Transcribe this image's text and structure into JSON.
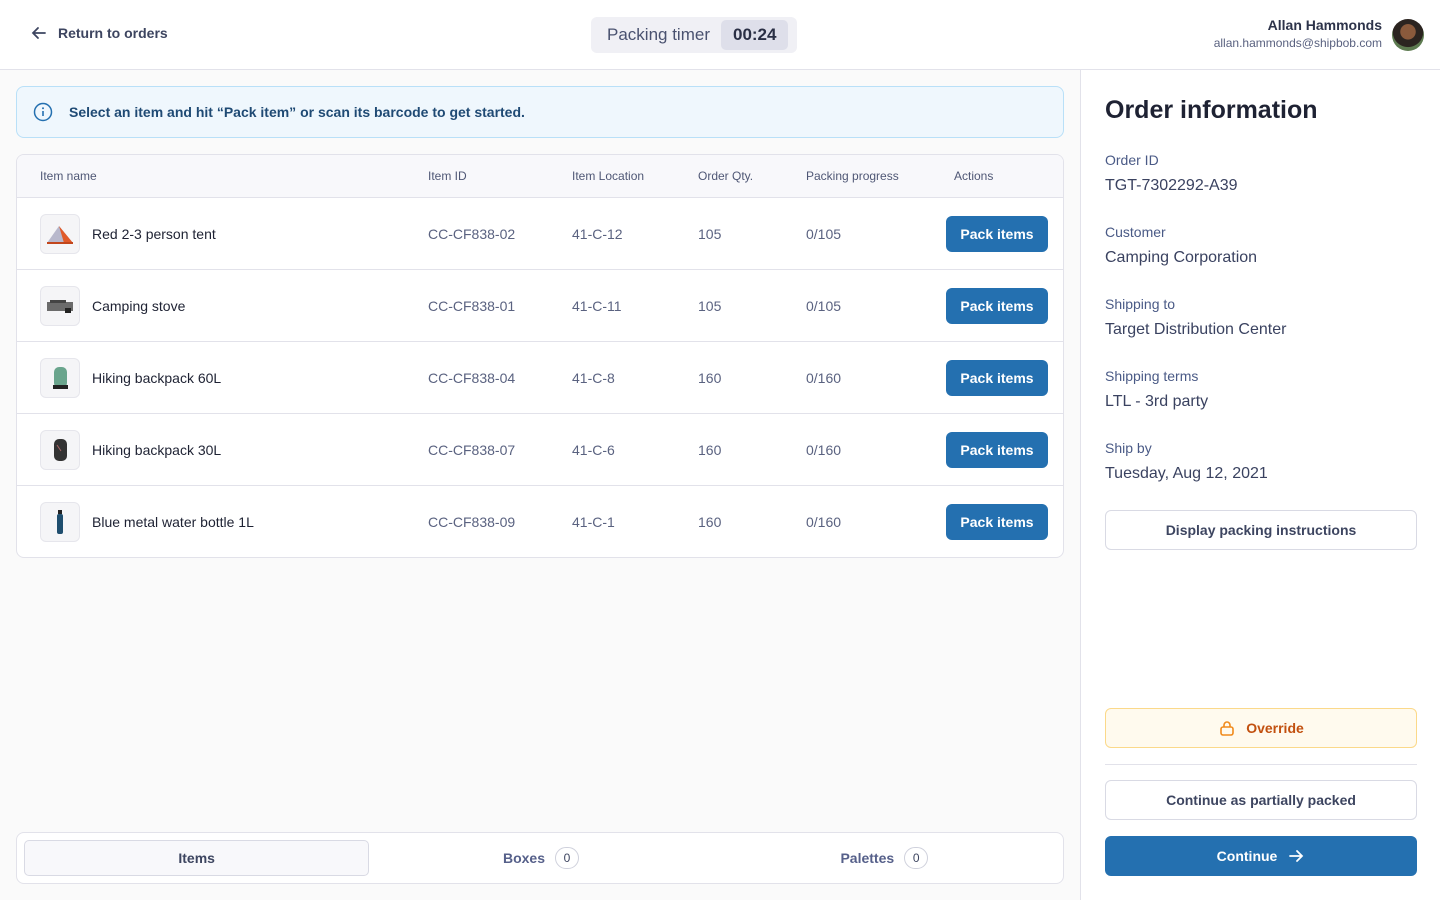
{
  "header": {
    "back_label": "Return to orders",
    "timer_label": "Packing timer",
    "timer_value": "00:24",
    "user_name": "Allan Hammonds",
    "user_email": "allan.hammonds@shipbob.com"
  },
  "banner": {
    "text": "Select an item and hit “Pack item” or scan its barcode to get started.",
    "icon": "info-icon"
  },
  "table": {
    "columns": [
      "Item name",
      "Item ID",
      "Item Location",
      "Order Qty.",
      "Packing progress",
      "Actions"
    ],
    "rows": [
      {
        "name": "Red 2-3 person tent",
        "id": "CC-CF838-02",
        "location": "41-C-12",
        "qty": "105",
        "progress": "0/105",
        "action": "Pack items"
      },
      {
        "name": "Camping stove",
        "id": "CC-CF838-01",
        "location": "41-C-11",
        "qty": "105",
        "progress": "0/105",
        "action": "Pack items"
      },
      {
        "name": "Hiking backpack 60L",
        "id": "CC-CF838-04",
        "location": "41-C-8",
        "qty": "160",
        "progress": "0/160",
        "action": "Pack items"
      },
      {
        "name": "Hiking backpack 30L",
        "id": "CC-CF838-07",
        "location": "41-C-6",
        "qty": "160",
        "progress": "0/160",
        "action": "Pack items"
      },
      {
        "name": "Blue metal water bottle 1L",
        "id": "CC-CF838-09",
        "location": "41-C-1",
        "qty": "160",
        "progress": "0/160",
        "action": "Pack items"
      }
    ]
  },
  "tabs": [
    {
      "label": "Items",
      "active": true
    },
    {
      "label": "Boxes",
      "count": "0"
    },
    {
      "label": "Palettes",
      "count": "0"
    }
  ],
  "order": {
    "title": "Order information",
    "fields": [
      {
        "label": "Order ID",
        "value": "TGT-7302292-A39"
      },
      {
        "label": "Customer",
        "value": "Camping Corporation"
      },
      {
        "label": "Shipping to",
        "value": "Target Distribution Center"
      },
      {
        "label": "Shipping terms",
        "value": "LTL - 3rd party"
      },
      {
        "label": "Ship by",
        "value": "Tuesday, Aug 12, 2021"
      }
    ],
    "instructions_label": "Display packing instructions",
    "override_label": "Override",
    "partial_label": "Continue as partially packed",
    "continue_label": "Continue"
  },
  "colors": {
    "primary": "#2470b0",
    "override_text": "#c2500f",
    "banner_bg": "#eff7fd"
  }
}
